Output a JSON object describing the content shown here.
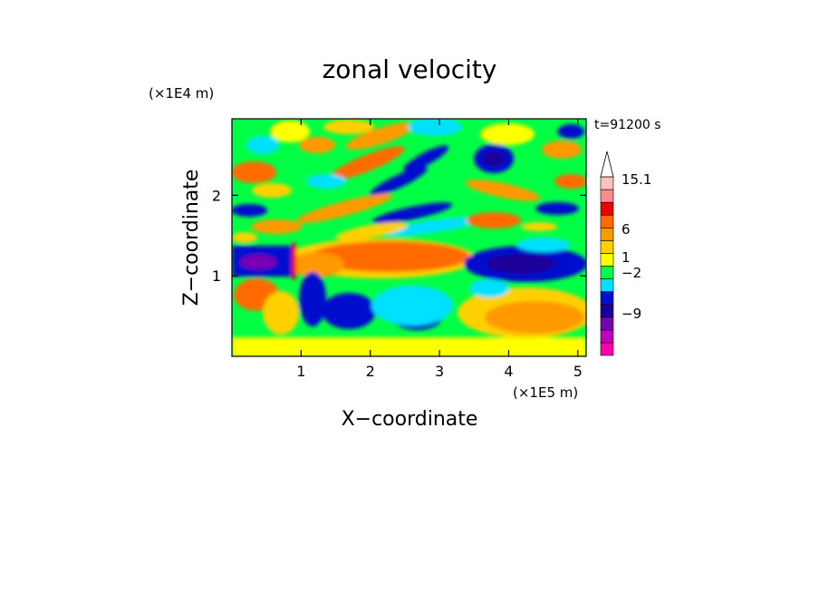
{
  "chart_data": {
    "type": "heatmap",
    "title": "zonal velocity",
    "xlabel": "X−coordinate",
    "ylabel": "Z−coordinate",
    "x_unit": "(×1E5 m)",
    "y_unit": "(×1E4 m)",
    "time_label": "t=91200 s",
    "xlim": [
      0,
      5.12
    ],
    "ylim": [
      0,
      2.95
    ],
    "x_ticks": [
      1,
      2,
      3,
      4,
      5
    ],
    "y_ticks": [
      1,
      2
    ],
    "colorbar": {
      "levels": [
        {
          "color": "#ff00a8"
        },
        {
          "color": "#c000c0"
        },
        {
          "color": "#7a00b4"
        },
        {
          "color": "#1a0099"
        },
        {
          "color": "#0010cc"
        },
        {
          "color": "#00e0ff"
        },
        {
          "color": "#00ff44"
        },
        {
          "color": "#ffff00"
        },
        {
          "color": "#ffd000"
        },
        {
          "color": "#ff9900"
        },
        {
          "color": "#ff6a00"
        },
        {
          "color": "#ee0000"
        },
        {
          "color": "#ff8888"
        },
        {
          "color": "#ffc0c0"
        }
      ],
      "overflow_color": "#ffffff",
      "tick_labels": [
        "15.1",
        "6",
        "1",
        "−2",
        "−9"
      ]
    }
  }
}
